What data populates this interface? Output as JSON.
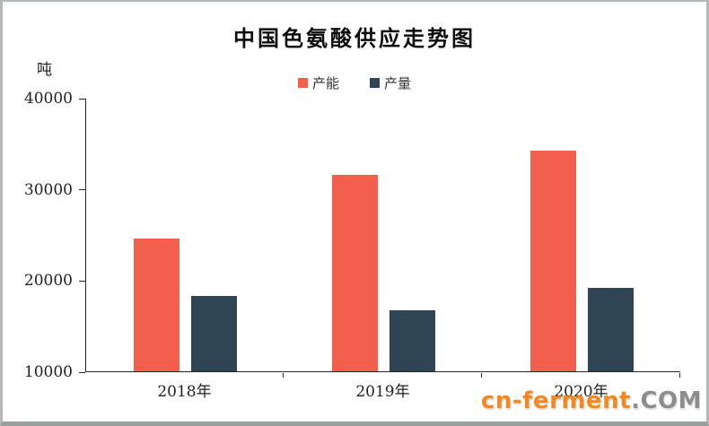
{
  "chart_data": {
    "type": "bar",
    "title": "中国色氨酸供应走势图",
    "unit_label": "吨",
    "categories": [
      "2018年",
      "2019年",
      "2020年"
    ],
    "series": [
      {
        "name": "产能",
        "color": "#f25f4d",
        "values": [
          24600,
          31500,
          34200
        ]
      },
      {
        "name": "产量",
        "color": "#2f4554",
        "values": [
          18300,
          16700,
          19100
        ]
      }
    ],
    "ylim": [
      10000,
      40000
    ],
    "yticks": [
      10000,
      20000,
      30000,
      40000
    ],
    "legend_position": "top",
    "grid": false
  },
  "watermark": {
    "brand": "cn-ferment",
    "suffix": ".COM",
    "brand_color": "#f6861f",
    "suffix_color": "#8d8d8d"
  }
}
